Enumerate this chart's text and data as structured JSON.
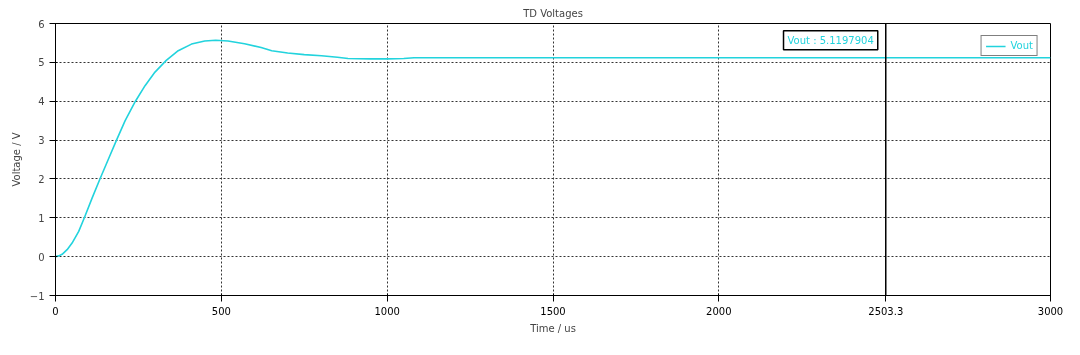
{
  "chart_data": {
    "type": "line",
    "title": "TD Voltages",
    "xlabel": "Time / us",
    "ylabel": "Voltage / V",
    "x": [
      0,
      10,
      20,
      35,
      50,
      70,
      87,
      110,
      134,
      160,
      184,
      210,
      241,
      270,
      300,
      334,
      370,
      410,
      450,
      483,
      520,
      570,
      620,
      652,
      700,
      750,
      802,
      850,
      882,
      950,
      1001,
      1050,
      1081,
      1200,
      1400,
      1700,
      2000,
      2500,
      3000
    ],
    "series": [
      {
        "name": "Vout",
        "color": "#22d3dd",
        "values": [
          0,
          0.02,
          0.06,
          0.18,
          0.35,
          0.65,
          1.0,
          1.5,
          2.0,
          2.52,
          3.0,
          3.5,
          4.0,
          4.4,
          4.75,
          5.05,
          5.3,
          5.47,
          5.55,
          5.57,
          5.55,
          5.48,
          5.38,
          5.3,
          5.24,
          5.2,
          5.17,
          5.13,
          5.1,
          5.09,
          5.09,
          5.1,
          5.12,
          5.12,
          5.12,
          5.12,
          5.12,
          5.12,
          5.12
        ]
      }
    ],
    "xlim": [
      0,
      3000
    ],
    "ylim": [
      -1,
      6
    ],
    "xticks": [
      0,
      500,
      1000,
      1500,
      2000,
      3000
    ],
    "yticks": [
      -1,
      0,
      1,
      2,
      3,
      4,
      5,
      6
    ],
    "ref_lines": [
      {
        "axis": "x",
        "value": 2503.3,
        "label": "2503.3",
        "color": "#000000"
      }
    ],
    "annotations": [
      {
        "text": "Vout : 5.1197904",
        "x": 2503.3,
        "y": 5.1197904
      }
    ],
    "grid": true,
    "legend": "top right",
    "line_style": "solid",
    "marker": "none"
  }
}
